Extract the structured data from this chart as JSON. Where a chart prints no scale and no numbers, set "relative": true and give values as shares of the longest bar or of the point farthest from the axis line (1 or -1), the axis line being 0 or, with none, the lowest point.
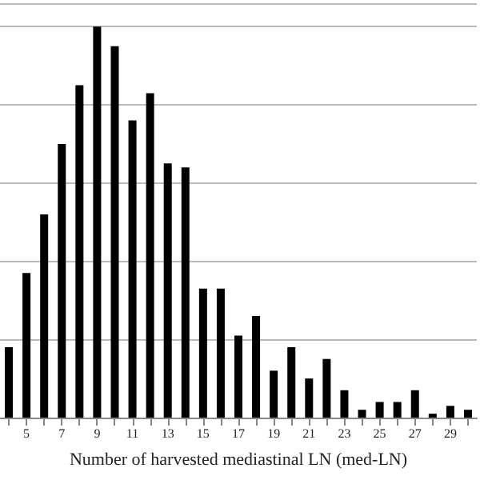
{
  "chart_data": {
    "type": "bar",
    "xlabel": "Number of harvested mediastinal LN (med-LN)",
    "relative": true,
    "grid": "y",
    "color": "#000000",
    "categories": [
      null,
      "5",
      null,
      "7",
      null,
      "9",
      null,
      "11",
      null,
      "13",
      null,
      "15",
      null,
      "17",
      null,
      "19",
      null,
      "21",
      null,
      "23",
      null,
      "25",
      null,
      "27",
      null,
      "29",
      null
    ],
    "values": [
      0.18,
      0.37,
      0.52,
      0.7,
      0.85,
      1,
      0.95,
      0.76,
      0.83,
      0.65,
      0.64,
      0.33,
      0.33,
      0.21,
      0.26,
      0.12,
      0.18,
      0.1,
      0.15,
      0.07,
      0.02,
      0.04,
      0.04,
      0.07,
      0.01,
      0.03,
      0.02
    ]
  }
}
